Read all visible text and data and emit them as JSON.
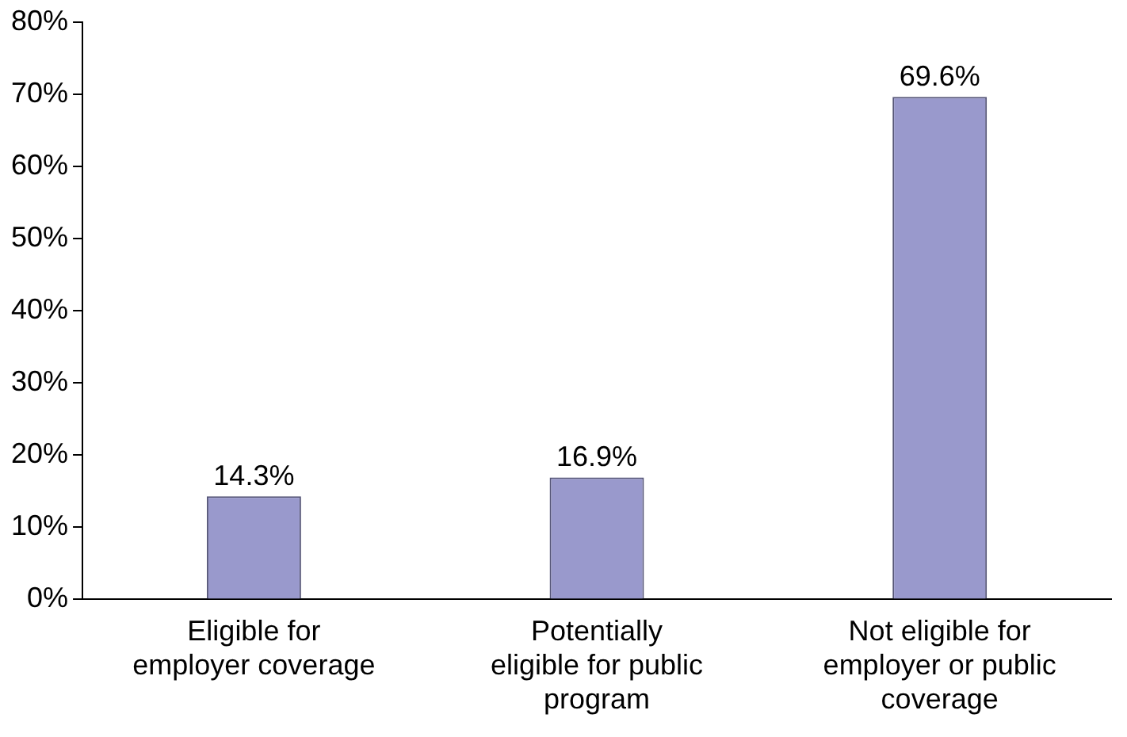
{
  "chart_data": {
    "type": "bar",
    "categories": [
      "Eligible for employer coverage",
      "Potentially eligible for public program",
      "Not eligible for employer or public coverage"
    ],
    "values": [
      14.3,
      16.9,
      69.6
    ],
    "value_labels": [
      "14.3%",
      "16.9%",
      "69.6%"
    ],
    "color": "#9999cc",
    "ylim": [
      0,
      80
    ],
    "yticks": [
      {
        "value": 0,
        "label": "0%"
      },
      {
        "value": 10,
        "label": "10%"
      },
      {
        "value": 20,
        "label": "20%"
      },
      {
        "value": 30,
        "label": "30%"
      },
      {
        "value": 40,
        "label": "40%"
      },
      {
        "value": 50,
        "label": "50%"
      },
      {
        "value": 60,
        "label": "60%"
      },
      {
        "value": 70,
        "label": "70%"
      },
      {
        "value": 80,
        "label": "80%"
      }
    ],
    "grid": false,
    "legend": false
  }
}
